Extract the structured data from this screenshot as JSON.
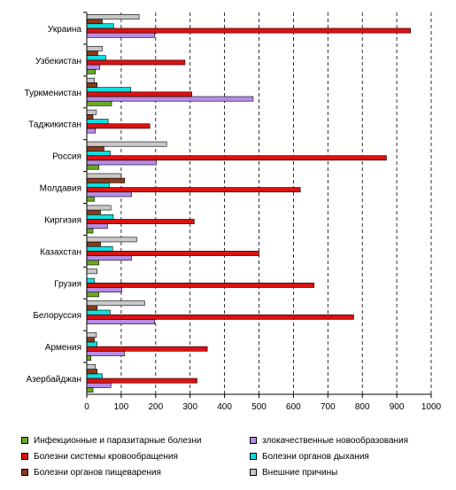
{
  "chart_data": {
    "type": "bar",
    "orientation": "horizontal",
    "categories": [
      "Украина",
      "Узбекистан",
      "Туркменистан",
      "Таджикистан",
      "Россия",
      "Молдавия",
      "Киргизия",
      "Казахстан",
      "Грузия",
      "Белоруссия",
      "Армения",
      "Азербайджан"
    ],
    "series": [
      {
        "name": "Инфекционные и паразитарные болезни",
        "color": "#66aa22",
        "values": [
          0,
          25,
          72,
          0,
          35,
          22,
          18,
          35,
          35,
          0,
          12,
          18
        ]
      },
      {
        "name": "злокачественные новообразования",
        "color": "#b58de8",
        "values": [
          197,
          38,
          483,
          25,
          202,
          130,
          60,
          130,
          102,
          197,
          110,
          70
        ]
      },
      {
        "name": "Болезни системы кровообращения",
        "color": "#dd1111",
        "values": [
          940,
          285,
          305,
          183,
          870,
          620,
          312,
          500,
          660,
          775,
          350,
          320
        ]
      },
      {
        "name": "Болезни органов дыхания",
        "color": "#11dddd",
        "values": [
          78,
          55,
          128,
          62,
          68,
          65,
          77,
          75,
          22,
          68,
          30,
          45
        ]
      },
      {
        "name": "Болезни органов пищеварения",
        "color": "#8b3a1a",
        "values": [
          45,
          32,
          30,
          18,
          50,
          110,
          40,
          40,
          0,
          30,
          22,
          30
        ]
      },
      {
        "name": "Внешние причины",
        "color": "#c8c8c8",
        "values": [
          152,
          45,
          22,
          28,
          232,
          100,
          70,
          145,
          30,
          168,
          28,
          25
        ]
      }
    ],
    "xlim": [
      0,
      1000
    ],
    "xticks": [
      "0",
      "100",
      "200",
      "300",
      "400",
      "500",
      "600",
      "700",
      "800",
      "900",
      "1000"
    ],
    "xlabel": "",
    "ylabel": "",
    "title": "",
    "grid": "vertical dashed",
    "legend_position": "bottom"
  }
}
